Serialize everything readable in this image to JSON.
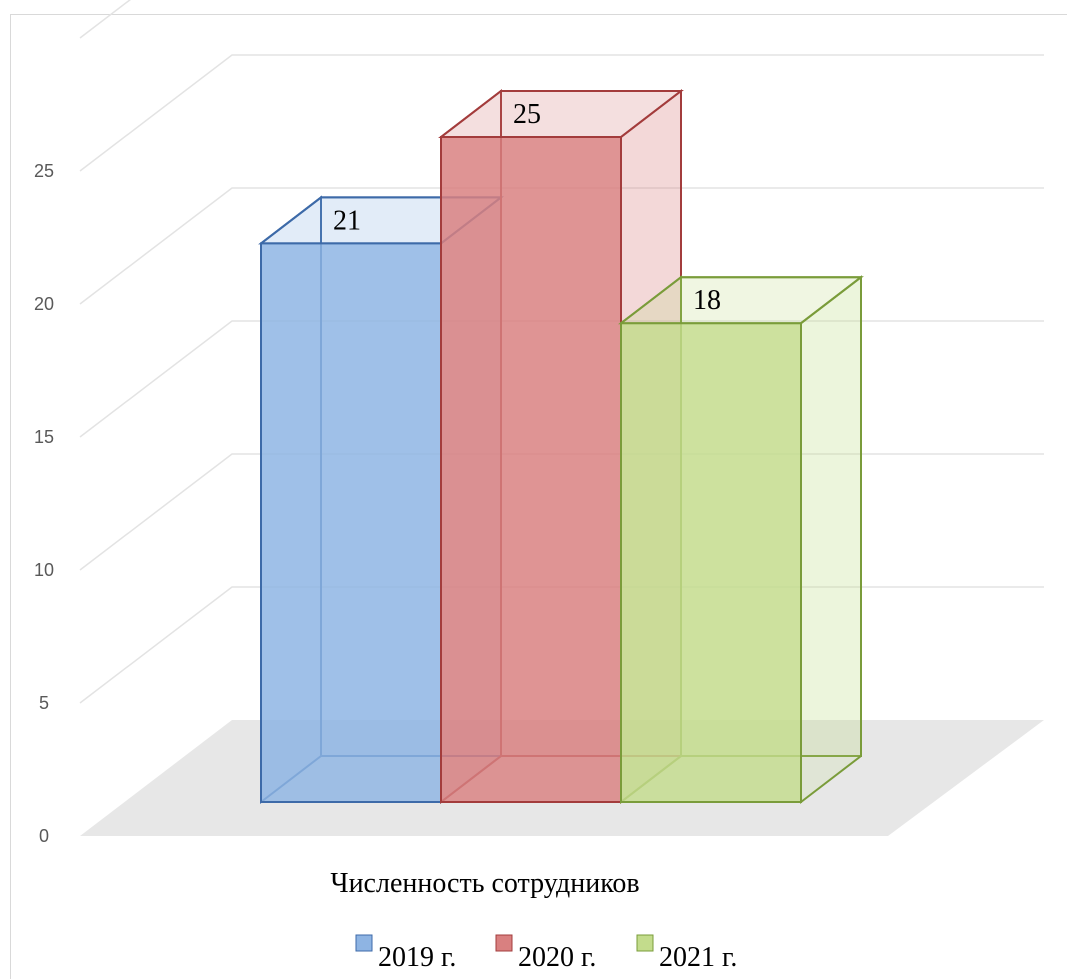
{
  "chart_data": {
    "type": "bar",
    "style": "3d-column",
    "categories": [
      "Численность сотрудников"
    ],
    "series": [
      {
        "name": "2019 г.",
        "values": [
          21
        ],
        "color": "#8eb4e3",
        "edge": "#3d6aa8"
      },
      {
        "name": "2020 г.",
        "values": [
          25
        ],
        "color": "#d98080",
        "edge": "#a33c3c"
      },
      {
        "name": "2021 г.",
        "values": [
          18
        ],
        "color": "#c3dc8c",
        "edge": "#7a9c3a"
      }
    ],
    "y_ticks": [
      "0",
      "5",
      "10",
      "15",
      "20",
      "25"
    ],
    "ylim": [
      0,
      25
    ],
    "grid": true,
    "legend_position": "bottom",
    "data_labels": true,
    "title": "",
    "xlabel": "",
    "ylabel": ""
  }
}
